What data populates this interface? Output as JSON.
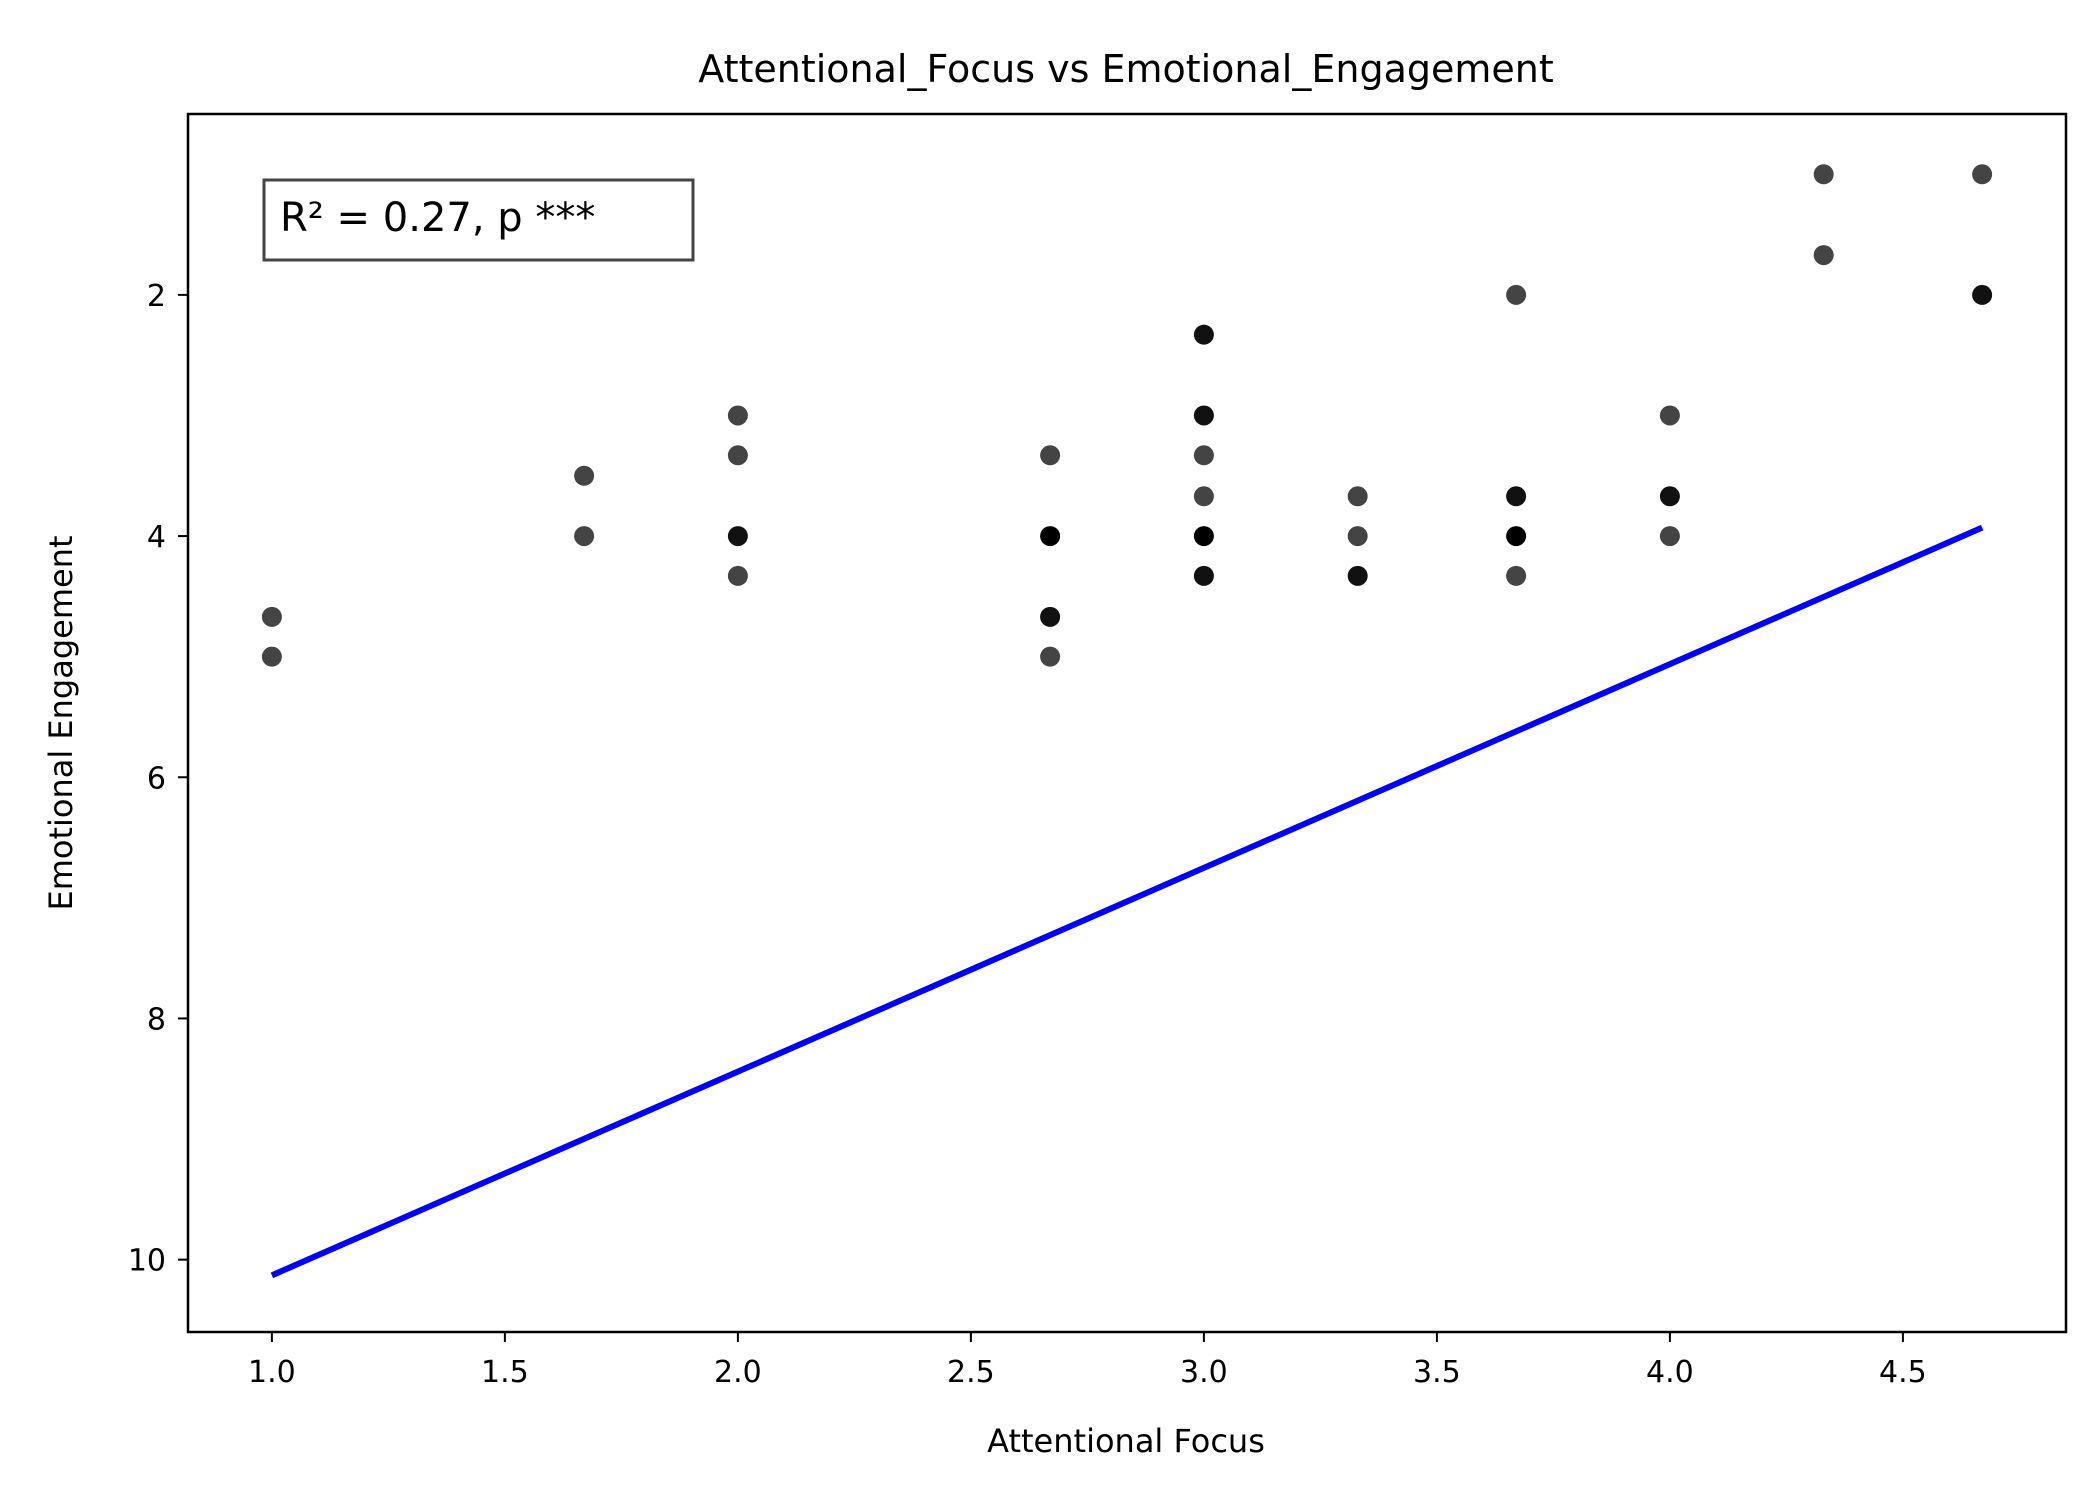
{
  "chart_data": {
    "type": "scatter",
    "title": "Attentional_Focus vs Emotional_Engagement",
    "xlabel": "Attentional Focus",
    "ylabel": "Emotional Engagement",
    "xlim": [
      0.82,
      4.85
    ],
    "ylim": [
      10.6,
      0.5
    ],
    "y_inverted": true,
    "xticks": [
      1.0,
      1.5,
      2.0,
      2.5,
      3.0,
      3.5,
      4.0,
      4.5
    ],
    "xtick_labels": [
      "1.0",
      "1.5",
      "2.0",
      "2.5",
      "3.0",
      "3.5",
      "4.0",
      "4.5"
    ],
    "yticks": [
      2,
      4,
      6,
      8,
      10
    ],
    "ytick_labels": [
      "2",
      "4",
      "6",
      "8",
      "10"
    ],
    "grid": false,
    "annotation": "R² = 0.27, p ***",
    "annotation_position": "top-left",
    "points": [
      {
        "x": 1.0,
        "y": 4.67,
        "shade": "#444444"
      },
      {
        "x": 1.0,
        "y": 5.0,
        "shade": "#444444"
      },
      {
        "x": 1.67,
        "y": 3.5,
        "shade": "#444444"
      },
      {
        "x": 1.67,
        "y": 4.0,
        "shade": "#444444"
      },
      {
        "x": 2.0,
        "y": 3.0,
        "shade": "#444444"
      },
      {
        "x": 2.0,
        "y": 3.33,
        "shade": "#444444"
      },
      {
        "x": 2.0,
        "y": 4.0,
        "shade": "#111111"
      },
      {
        "x": 2.0,
        "y": 4.33,
        "shade": "#444444"
      },
      {
        "x": 2.67,
        "y": 3.33,
        "shade": "#444444"
      },
      {
        "x": 2.67,
        "y": 4.0,
        "shade": "#000000"
      },
      {
        "x": 2.67,
        "y": 4.67,
        "shade": "#111111"
      },
      {
        "x": 2.67,
        "y": 5.0,
        "shade": "#444444"
      },
      {
        "x": 3.0,
        "y": 2.33,
        "shade": "#111111"
      },
      {
        "x": 3.0,
        "y": 3.0,
        "shade": "#111111"
      },
      {
        "x": 3.0,
        "y": 3.33,
        "shade": "#444444"
      },
      {
        "x": 3.0,
        "y": 3.67,
        "shade": "#444444"
      },
      {
        "x": 3.0,
        "y": 4.0,
        "shade": "#000000"
      },
      {
        "x": 3.0,
        "y": 4.33,
        "shade": "#111111"
      },
      {
        "x": 3.33,
        "y": 3.67,
        "shade": "#444444"
      },
      {
        "x": 3.33,
        "y": 4.0,
        "shade": "#444444"
      },
      {
        "x": 3.33,
        "y": 4.33,
        "shade": "#111111"
      },
      {
        "x": 3.67,
        "y": 2.0,
        "shade": "#444444"
      },
      {
        "x": 3.67,
        "y": 3.67,
        "shade": "#111111"
      },
      {
        "x": 3.67,
        "y": 4.0,
        "shade": "#000000"
      },
      {
        "x": 3.67,
        "y": 4.33,
        "shade": "#444444"
      },
      {
        "x": 4.0,
        "y": 3.0,
        "shade": "#444444"
      },
      {
        "x": 4.0,
        "y": 3.67,
        "shade": "#111111"
      },
      {
        "x": 4.0,
        "y": 4.0,
        "shade": "#444444"
      },
      {
        "x": 4.33,
        "y": 1.0,
        "shade": "#444444"
      },
      {
        "x": 4.33,
        "y": 1.67,
        "shade": "#444444"
      },
      {
        "x": 4.67,
        "y": 1.0,
        "shade": "#444444"
      },
      {
        "x": 4.67,
        "y": 2.0,
        "shade": "#111111"
      }
    ],
    "fit_line": {
      "x": [
        1.0,
        4.67
      ],
      "y": [
        10.13,
        3.93
      ],
      "color": "#0000ff"
    }
  }
}
